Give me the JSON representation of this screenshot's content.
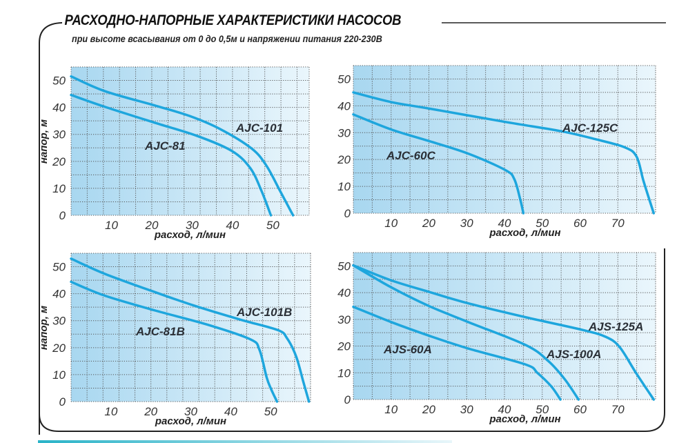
{
  "header": {
    "title": "РАСХОДНО-НАПОРНЫЕ ХАРАКТЕРИСТИКИ НАСОСОВ",
    "subtitle": "при высоте всасывания от 0 до 0,5м и напряжении питания 220-230В"
  },
  "colors": {
    "curve": "#1ea6dd",
    "plot_bg_left": "#a8d7f0",
    "plot_bg_right": "#eaf6fc",
    "grid": "#555555",
    "frame": "#222222"
  },
  "chart_data": [
    {
      "type": "line",
      "xlabel": "расход, л/мин",
      "ylabel": "напор, м",
      "xlim": [
        0,
        59
      ],
      "ylim": [
        0,
        55
      ],
      "xticks": [
        10,
        20,
        30,
        40,
        50
      ],
      "yticks": [
        0,
        10,
        20,
        30,
        40,
        50
      ],
      "grid": true,
      "series": [
        {
          "name": "AJC-101",
          "points": [
            [
              0,
              51.5
            ],
            [
              8.4,
              46
            ],
            [
              21,
              40.6
            ],
            [
              29.4,
              36.8
            ],
            [
              36.9,
              32
            ],
            [
              44.7,
              24.8
            ],
            [
              48.4,
              18.4
            ],
            [
              51.8,
              9
            ],
            [
              55,
              0
            ]
          ]
        },
        {
          "name": "AJC-81",
          "points": [
            [
              0,
              44.6
            ],
            [
              8.4,
              40.2
            ],
            [
              21,
              34.2
            ],
            [
              31.1,
              29.5
            ],
            [
              39.8,
              23.9
            ],
            [
              44.4,
              17.5
            ],
            [
              47.2,
              9
            ],
            [
              49.5,
              0
            ]
          ]
        }
      ]
    },
    {
      "type": "line",
      "xlabel": "расход, л/мин",
      "ylabel": "",
      "xlim": [
        0,
        80
      ],
      "ylim": [
        0,
        55
      ],
      "xticks": [
        10,
        20,
        30,
        40,
        50,
        60,
        70
      ],
      "yticks": [
        0,
        10,
        20,
        30,
        40,
        50
      ],
      "grid": true,
      "series": [
        {
          "name": "AJC-125C",
          "points": [
            [
              0,
              45
            ],
            [
              10,
              41.4
            ],
            [
              20,
              39
            ],
            [
              40.2,
              34
            ],
            [
              54.8,
              30.6
            ],
            [
              64,
              27.6
            ],
            [
              71.9,
              24.5
            ],
            [
              75,
              21
            ],
            [
              76.8,
              12
            ],
            [
              79.5,
              0
            ]
          ]
        },
        {
          "name": "AJC-60C",
          "points": [
            [
              0,
              36.8
            ],
            [
              10,
              31.2
            ],
            [
              20,
              26.9
            ],
            [
              30.4,
              22.2
            ],
            [
              40.2,
              16.1
            ],
            [
              42.6,
              12.7
            ],
            [
              44.2,
              5
            ],
            [
              45,
              0
            ]
          ]
        }
      ]
    },
    {
      "type": "line",
      "xlabel": "расход, л/мин",
      "ylabel": "напор, м",
      "xlim": [
        0,
        60
      ],
      "ylim": [
        0,
        55
      ],
      "xticks": [
        10,
        20,
        30,
        40,
        50
      ],
      "yticks": [
        0,
        10,
        20,
        30,
        40,
        50
      ],
      "grid": true,
      "series": [
        {
          "name": "AJC-101B",
          "points": [
            [
              0,
              53
            ],
            [
              8.4,
              47.4
            ],
            [
              21,
              40.6
            ],
            [
              31,
              35.5
            ],
            [
              42.6,
              30.3
            ],
            [
              51.8,
              26.5
            ],
            [
              54.1,
              23.5
            ],
            [
              56.4,
              16.7
            ],
            [
              58.2,
              7.3
            ],
            [
              59.6,
              0
            ]
          ]
        },
        {
          "name": "AJC-81B",
          "points": [
            [
              0,
              44.4
            ],
            [
              8.4,
              39.3
            ],
            [
              21,
              33.8
            ],
            [
              34,
              28.6
            ],
            [
              44.9,
              23.1
            ],
            [
              47.2,
              19.2
            ],
            [
              49,
              9
            ],
            [
              50.1,
              4.7
            ],
            [
              51.6,
              0
            ]
          ]
        }
      ]
    },
    {
      "type": "line",
      "xlabel": "расход, л/мин",
      "ylabel": "",
      "xlim": [
        0,
        80
      ],
      "ylim": [
        0,
        55
      ],
      "xticks": [
        10,
        20,
        30,
        40,
        50,
        60,
        70
      ],
      "yticks": [
        0,
        10,
        20,
        30,
        40,
        50
      ],
      "grid": true,
      "series": [
        {
          "name": "AJS-125A",
          "points": [
            [
              0,
              50.2
            ],
            [
              10,
              44.6
            ],
            [
              20,
              40.3
            ],
            [
              30.4,
              36
            ],
            [
              45.6,
              30.8
            ],
            [
              60.8,
              26
            ],
            [
              66.9,
              23.4
            ],
            [
              70.5,
              19.6
            ],
            [
              74.8,
              10
            ],
            [
              79.5,
              0
            ]
          ]
        },
        {
          "name": "AJS-100A",
          "points": [
            [
              0,
              50.2
            ],
            [
              10,
              42
            ],
            [
              20,
              35
            ],
            [
              30.4,
              29
            ],
            [
              45.6,
              20.4
            ],
            [
              51.6,
              14.4
            ],
            [
              56,
              7.5
            ],
            [
              59.6,
              0
            ]
          ]
        },
        {
          "name": "AJS-60A",
          "points": [
            [
              0,
              34.7
            ],
            [
              10,
              29
            ],
            [
              20,
              23.9
            ],
            [
              30.4,
              19.1
            ],
            [
              45.6,
              13.1
            ],
            [
              48.7,
              10
            ],
            [
              52.4,
              4.9
            ],
            [
              54.8,
              0
            ]
          ]
        }
      ]
    }
  ]
}
